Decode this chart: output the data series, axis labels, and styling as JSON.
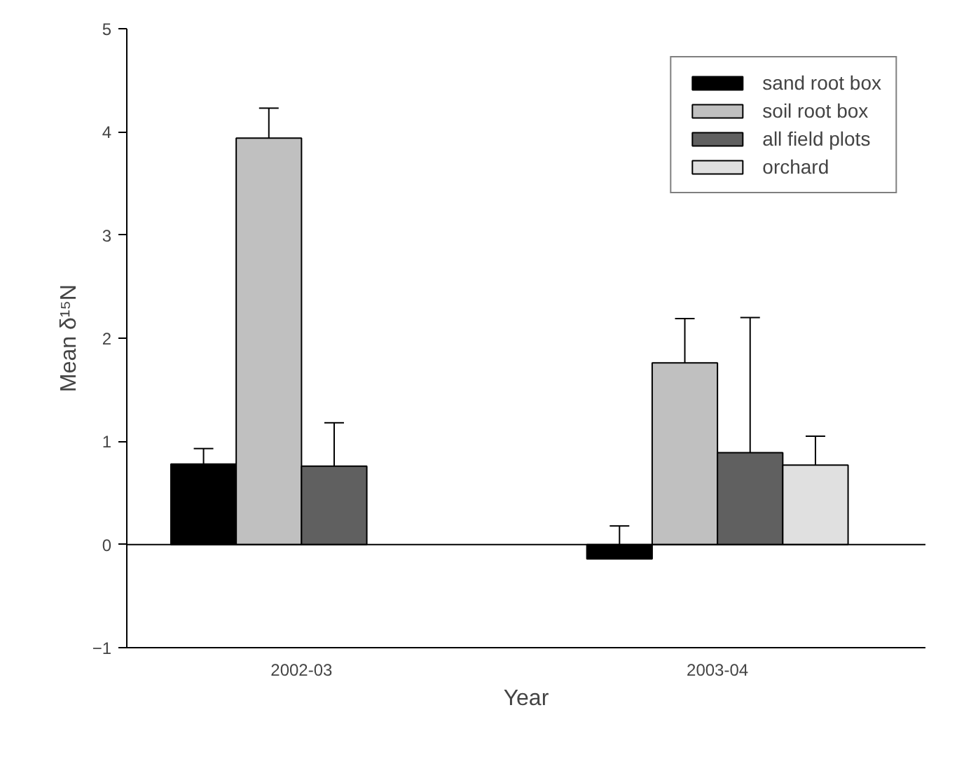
{
  "chart_data": {
    "type": "bar",
    "xlabel": "Year",
    "ylabel": "Mean δ¹⁵N",
    "categories": [
      "2002-03",
      "2003-04"
    ],
    "series": [
      {
        "name": "sand root box",
        "color": "#000000",
        "values": [
          0.78,
          -0.14
        ],
        "errors": [
          [
            0.78,
            0.93
          ],
          [
            -0.14,
            0.18
          ]
        ]
      },
      {
        "name": "soil root box",
        "color": "#c0c0c0",
        "values": [
          3.94,
          1.76
        ],
        "errors": [
          [
            3.94,
            4.23
          ],
          [
            1.76,
            2.19
          ]
        ]
      },
      {
        "name": "all field plots",
        "color": "#606060",
        "values": [
          0.76,
          0.89
        ],
        "errors": [
          [
            0.76,
            1.18
          ],
          [
            0.89,
            2.2
          ]
        ]
      },
      {
        "name": "orchard",
        "color": "#e0e0e0",
        "values": [
          null,
          0.77
        ],
        "errors": [
          null,
          [
            0.77,
            1.05
          ]
        ]
      }
    ],
    "ylim": [
      -1,
      5
    ],
    "yticks": [
      -1,
      0,
      1,
      2,
      3,
      4,
      5
    ],
    "ref_lines": [
      {
        "axis": "y",
        "value": 0,
        "color": "#000000"
      }
    ],
    "grid": false,
    "legend": "top right"
  }
}
